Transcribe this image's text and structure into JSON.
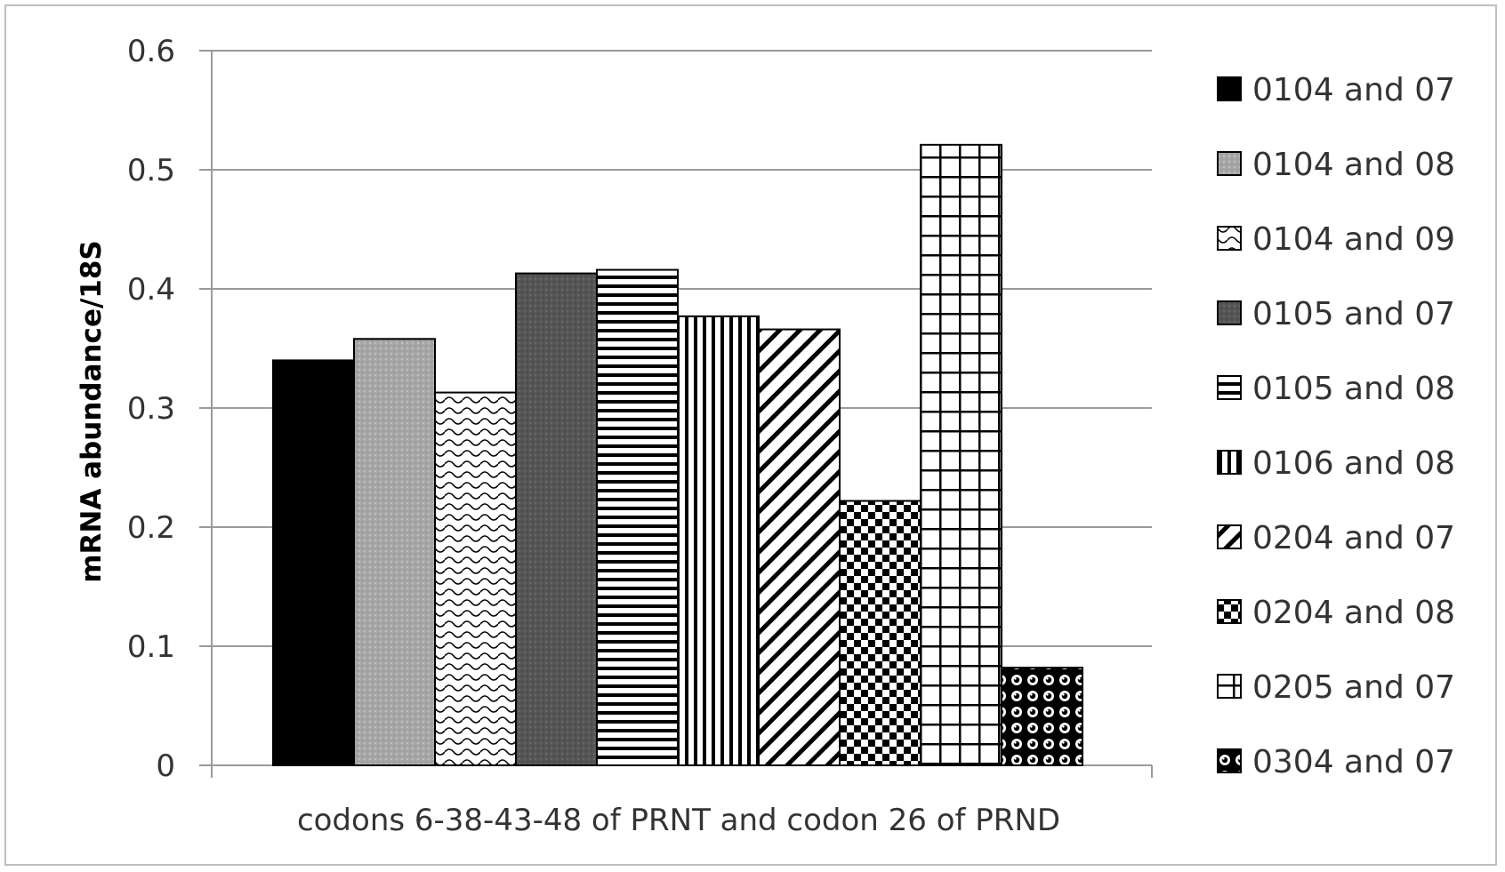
{
  "chart_data": {
    "type": "bar",
    "title": "",
    "xlabel": "codons 6-38-43-48  of PRNT and codon 26 of PRND",
    "ylabel": "mRNA abundance/18S",
    "ylim": [
      0,
      0.6
    ],
    "yticks": [
      "0",
      "0.1",
      "0.2",
      "0.3",
      "0.4",
      "0.5",
      "0.6"
    ],
    "grid": true,
    "legend_position": "right",
    "series": [
      {
        "name": "0104 and 07",
        "value": 0.34,
        "pattern": "solid-black"
      },
      {
        "name": "0104 and 08",
        "value": 0.358,
        "pattern": "light-gray-dots"
      },
      {
        "name": "0104 and 09",
        "value": 0.313,
        "pattern": "wave"
      },
      {
        "name": "0105 and 07",
        "value": 0.413,
        "pattern": "dark-gray-dots"
      },
      {
        "name": "0105 and 08",
        "value": 0.416,
        "pattern": "horizontal-lines"
      },
      {
        "name": "0106 and 08",
        "value": 0.377,
        "pattern": "vertical-lines"
      },
      {
        "name": "0204 and 07",
        "value": 0.366,
        "pattern": "diagonal-lines"
      },
      {
        "name": "0204 and 08",
        "value": 0.222,
        "pattern": "checkerboard"
      },
      {
        "name": "0205 and 07",
        "value": 0.521,
        "pattern": "grid"
      },
      {
        "name": "0304 and 07",
        "value": 0.082,
        "pattern": "circles"
      }
    ]
  }
}
